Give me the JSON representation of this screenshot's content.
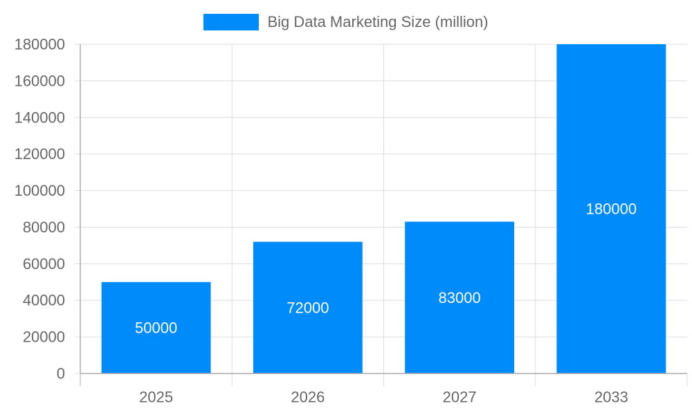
{
  "chart_data": {
    "type": "bar",
    "categories": [
      "2025",
      "2026",
      "2027",
      "2033"
    ],
    "series": [
      {
        "name": "Big Data Marketing Size (million)",
        "values": [
          50000,
          72000,
          83000,
          180000
        ]
      }
    ],
    "title": "",
    "xlabel": "",
    "ylabel": "",
    "ylim": [
      0,
      180000
    ],
    "yticks": [
      0,
      20000,
      40000,
      60000,
      80000,
      100000,
      120000,
      140000,
      160000,
      180000
    ],
    "grid": true,
    "legend_position": "top-center",
    "data_labels": true
  },
  "colors": {
    "bar": "#008bfa",
    "grid": "#dddddd",
    "axis": "#aaaaaa",
    "tick_text": "#666666",
    "data_label": "#ffffff"
  }
}
